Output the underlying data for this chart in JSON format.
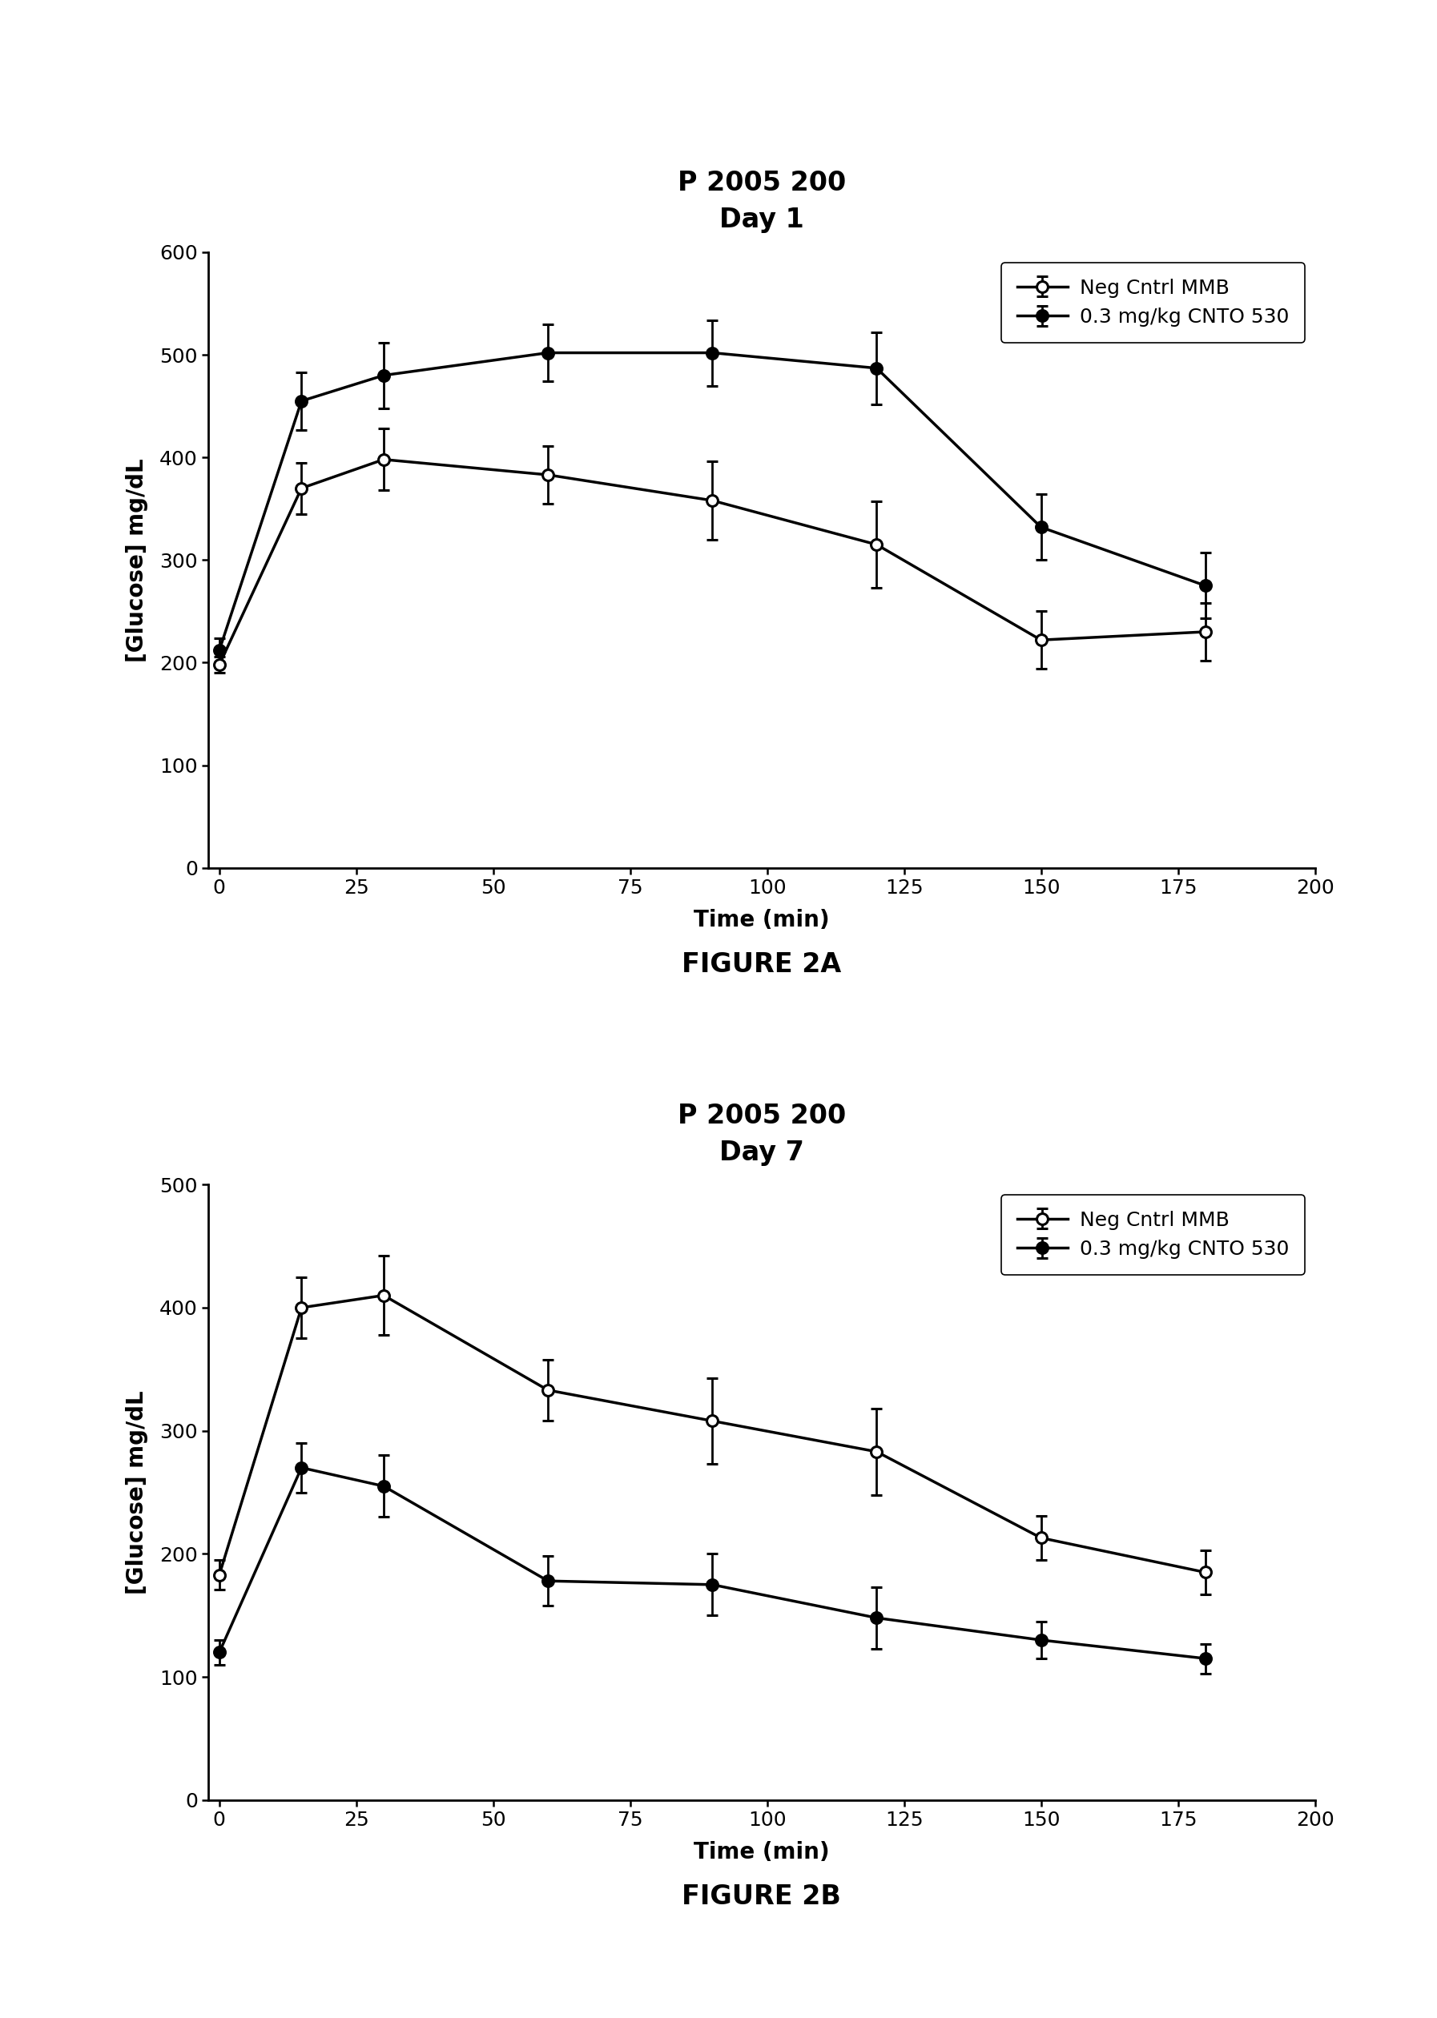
{
  "fig2a": {
    "title_line1": "P 2005 200",
    "title_line2": "Day 1",
    "xlabel": "Time (min)",
    "ylabel": "[Glucose] mg/dL",
    "ylim": [
      0,
      600
    ],
    "yticks": [
      0,
      100,
      200,
      300,
      400,
      500,
      600
    ],
    "xlim": [
      -2,
      200
    ],
    "xticks": [
      0,
      25,
      50,
      75,
      100,
      125,
      150,
      175,
      200
    ],
    "series": [
      {
        "label": "Neg Cntrl MMB",
        "x": [
          0,
          15,
          30,
          60,
          90,
          120,
          150,
          180
        ],
        "y": [
          198,
          370,
          398,
          383,
          358,
          315,
          222,
          230
        ],
        "yerr": [
          8,
          25,
          30,
          28,
          38,
          42,
          28,
          28
        ],
        "marker": "o",
        "filled": false,
        "linewidth": 2.5,
        "markersize": 10,
        "color": "#000000"
      },
      {
        "label": "0.3 mg/kg CNTO 530",
        "x": [
          0,
          15,
          30,
          60,
          90,
          120,
          150,
          180
        ],
        "y": [
          212,
          455,
          480,
          502,
          502,
          487,
          332,
          275
        ],
        "yerr": [
          12,
          28,
          32,
          28,
          32,
          35,
          32,
          32
        ],
        "marker": "o",
        "filled": true,
        "linewidth": 2.5,
        "markersize": 10,
        "color": "#000000"
      }
    ],
    "legend_loc": "upper right",
    "figure_label": "FIGURE 2A"
  },
  "fig2b": {
    "title_line1": "P 2005 200",
    "title_line2": "Day 7",
    "xlabel": "Time (min)",
    "ylabel": "[Glucose] mg/dL",
    "ylim": [
      0,
      500
    ],
    "yticks": [
      0,
      100,
      200,
      300,
      400,
      500
    ],
    "xlim": [
      -2,
      200
    ],
    "xticks": [
      0,
      25,
      50,
      75,
      100,
      125,
      150,
      175,
      200
    ],
    "series": [
      {
        "label": "Neg Cntrl MMB",
        "x": [
          0,
          15,
          30,
          60,
          90,
          120,
          150,
          180
        ],
        "y": [
          183,
          400,
          410,
          333,
          308,
          283,
          213,
          185
        ],
        "yerr": [
          12,
          25,
          32,
          25,
          35,
          35,
          18,
          18
        ],
        "marker": "o",
        "filled": false,
        "linewidth": 2.5,
        "markersize": 10,
        "color": "#000000"
      },
      {
        "label": "0.3 mg/kg CNTO 530",
        "x": [
          0,
          15,
          30,
          60,
          90,
          120,
          150,
          180
        ],
        "y": [
          120,
          270,
          255,
          178,
          175,
          148,
          130,
          115
        ],
        "yerr": [
          10,
          20,
          25,
          20,
          25,
          25,
          15,
          12
        ],
        "marker": "o",
        "filled": true,
        "linewidth": 2.5,
        "markersize": 10,
        "color": "#000000"
      }
    ],
    "legend_loc": "upper right",
    "figure_label": "FIGURE 2B"
  },
  "background_color": "#ffffff",
  "title_fontsize": 24,
  "axis_label_fontsize": 20,
  "tick_fontsize": 18,
  "legend_fontsize": 18,
  "figure_label_fontsize": 24
}
